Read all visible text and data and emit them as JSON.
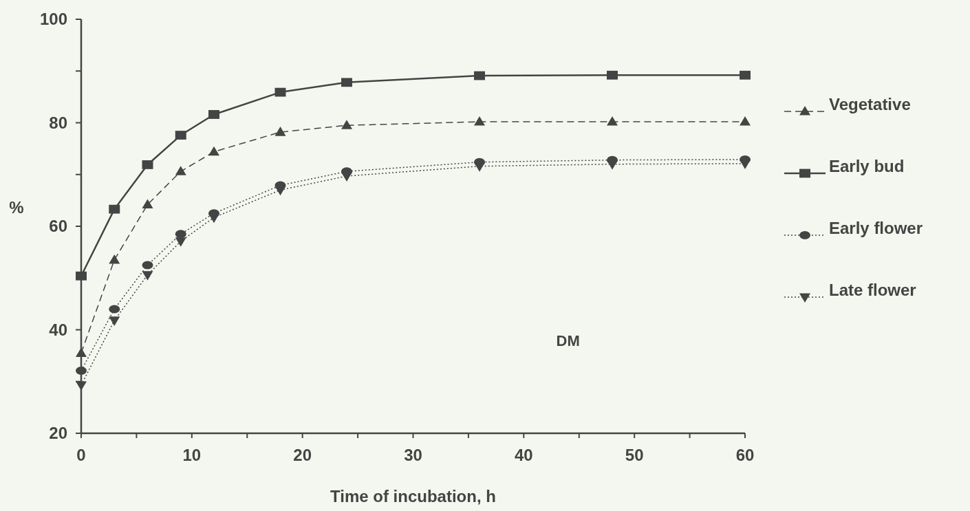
{
  "chart_data": {
    "type": "line",
    "xlabel": "Time of incubation, h",
    "ylabel": "%",
    "annotations": [
      "DM"
    ],
    "x": [
      0,
      3,
      6,
      9,
      12,
      18,
      24,
      36,
      48,
      60
    ],
    "xlim": [
      0,
      60
    ],
    "xticks": [
      0,
      {
        "value": 5,
        "label": null
      },
      10,
      {
        "value": 15,
        "label": null
      },
      20,
      {
        "value": 25,
        "label": null
      },
      30,
      {
        "value": 35,
        "label": null
      },
      40,
      {
        "value": 45,
        "label": null
      },
      50,
      {
        "value": 55,
        "label": null
      },
      60
    ],
    "ylim": [
      20,
      100
    ],
    "yticks": [
      20,
      {
        "value": 30,
        "label": null
      },
      40,
      {
        "value": 50,
        "label": null
      },
      60,
      {
        "value": 70,
        "label": null
      },
      80,
      {
        "value": 90,
        "label": null
      },
      100
    ],
    "grid": false,
    "legend": "right",
    "series": [
      {
        "name": "Vegetative",
        "color": "#444444",
        "marker": "triangle",
        "line_style": "dashed",
        "values": [
          35.5,
          53.5,
          64.2,
          70.6,
          74.4,
          78.2,
          79.5,
          80.2,
          80.2,
          80.2
        ]
      },
      {
        "name": "Early bud",
        "color": "#444444",
        "marker": "square",
        "line_style": "solid",
        "values": [
          50.4,
          63.3,
          71.9,
          77.6,
          81.6,
          85.9,
          87.8,
          89.1,
          89.2,
          89.2
        ]
      },
      {
        "name": "Early flower",
        "color": "#444444",
        "marker": "circle",
        "line_style": "dotted",
        "values": [
          32.1,
          44.0,
          52.5,
          58.5,
          62.5,
          67.9,
          70.6,
          72.4,
          72.8,
          72.9
        ]
      },
      {
        "name": "Late flower",
        "color": "#444444",
        "marker": "triangle-down",
        "line_style": "dotted",
        "values": [
          29.3,
          41.8,
          50.6,
          57.1,
          61.7,
          67.0,
          69.7,
          71.6,
          72.0,
          72.1
        ]
      }
    ]
  }
}
